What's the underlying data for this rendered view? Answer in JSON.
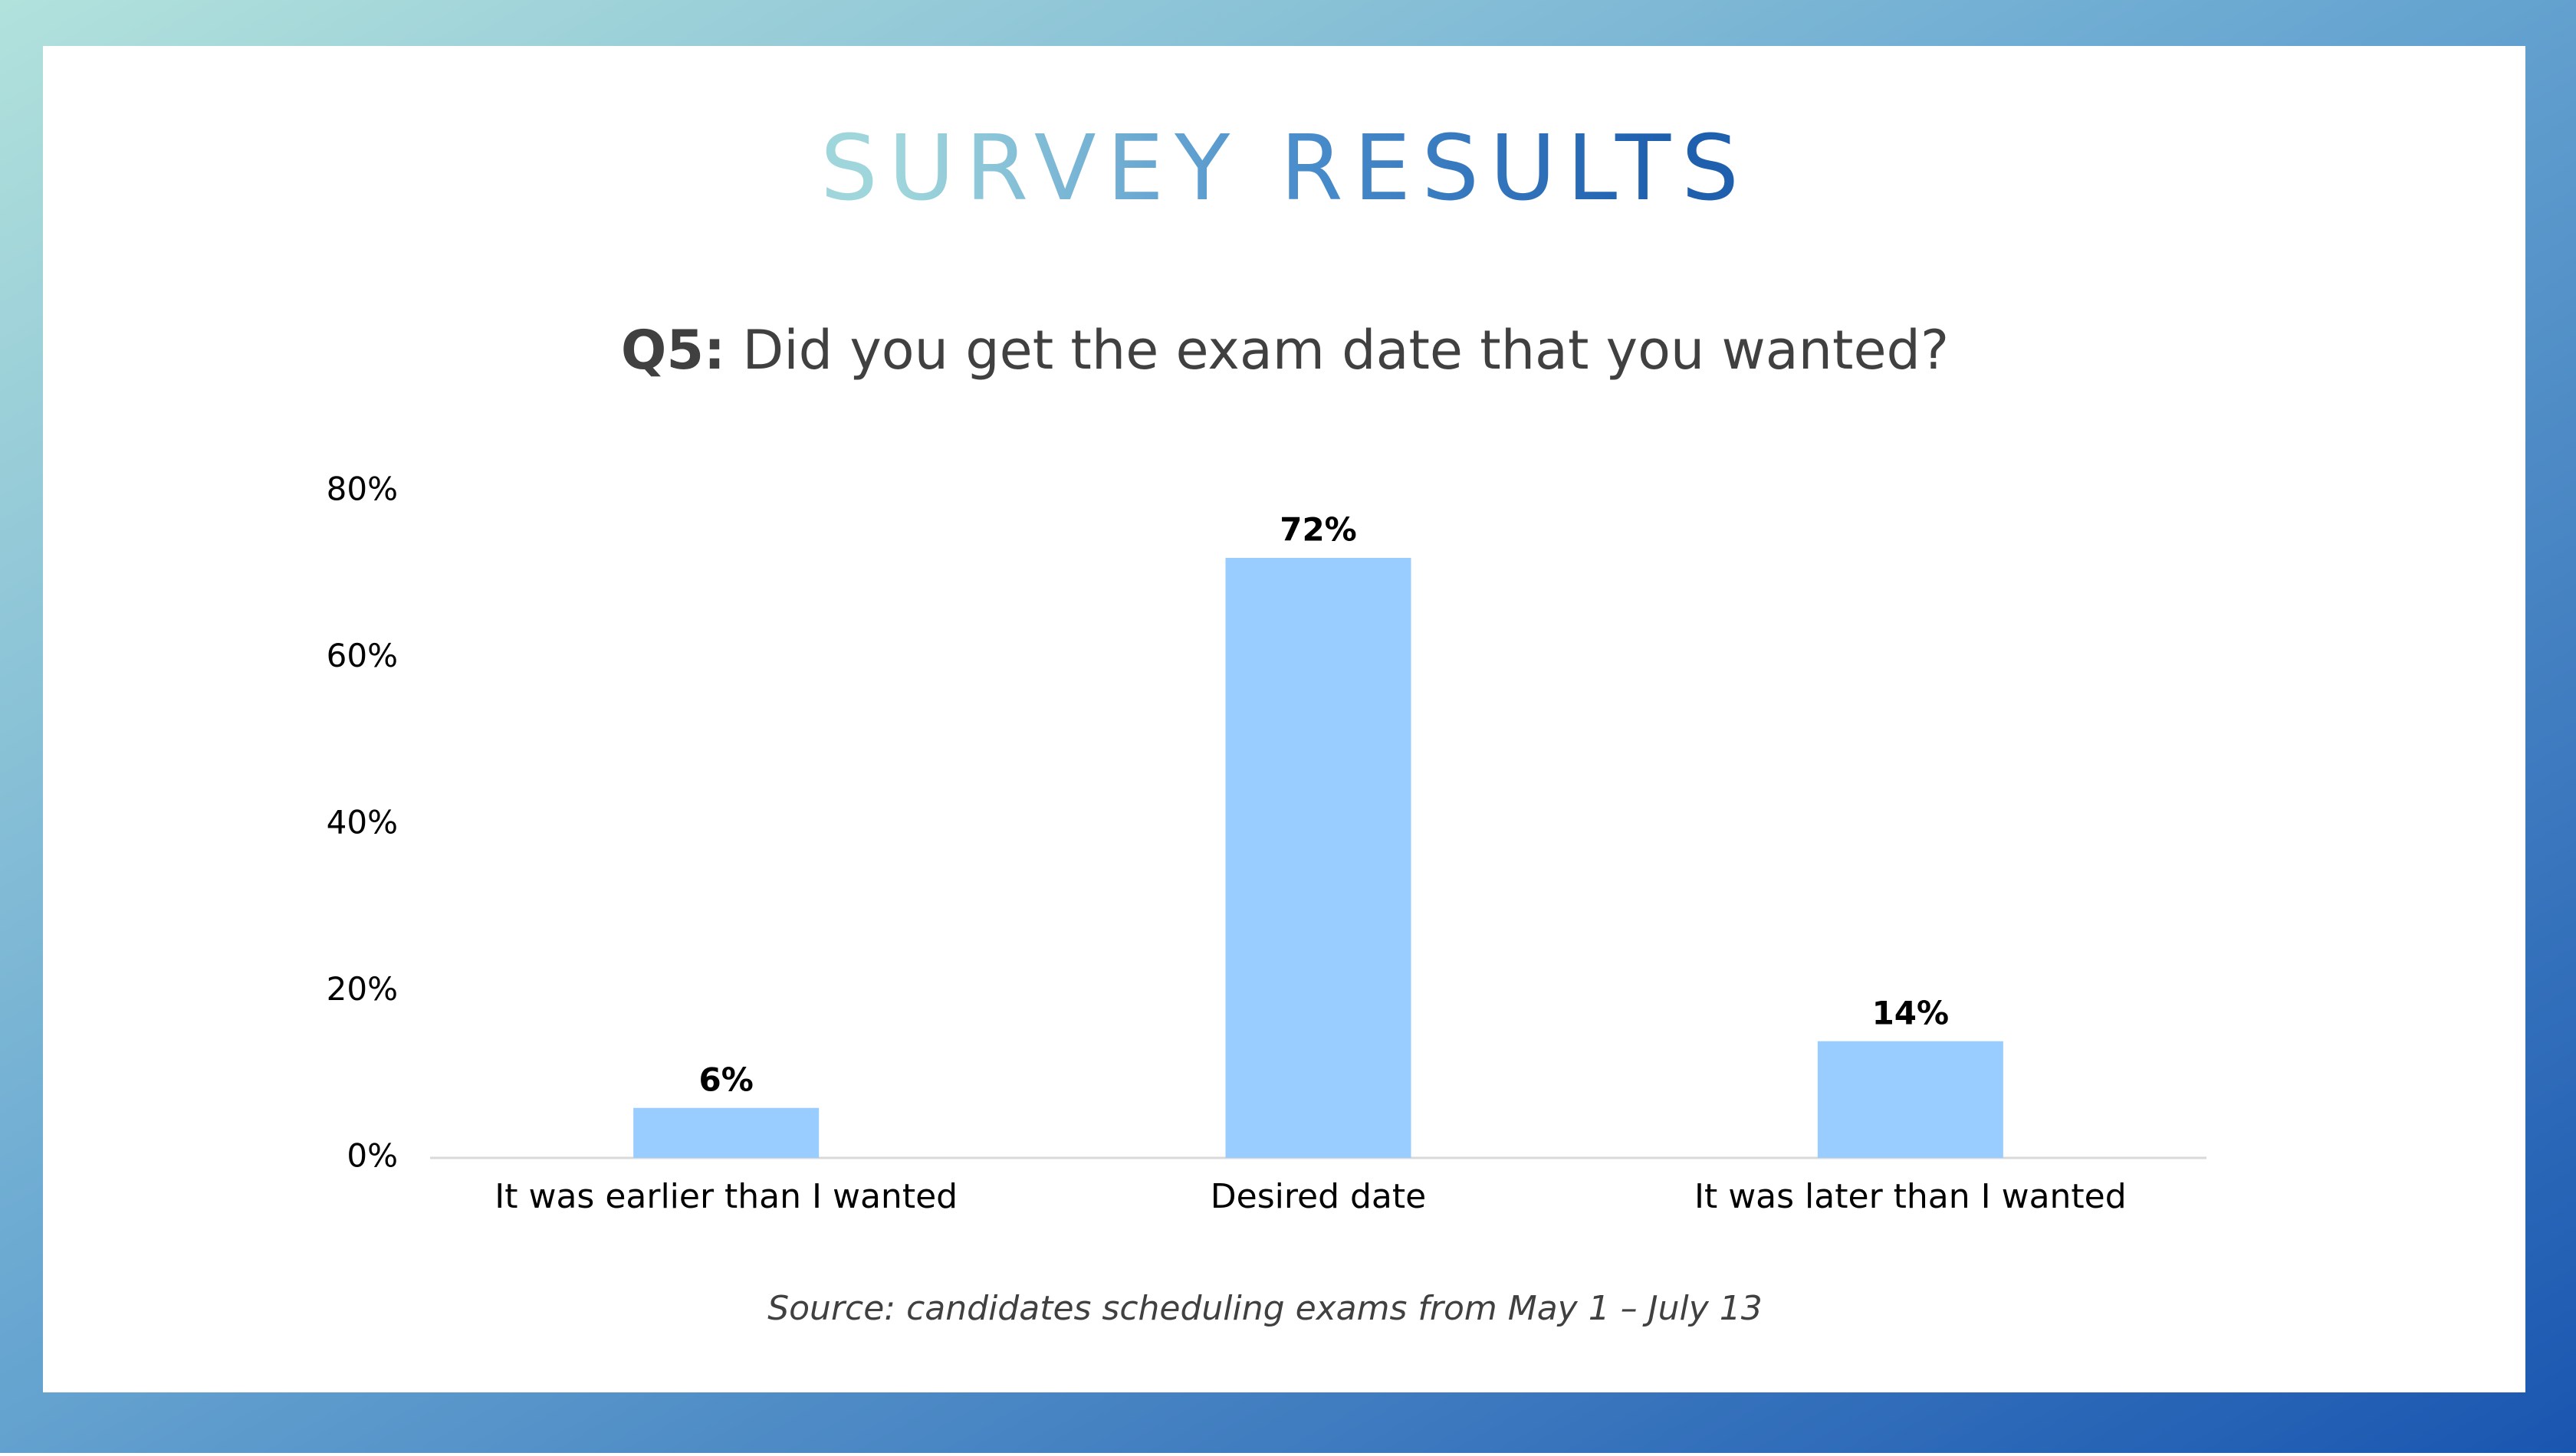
{
  "chart_data": {
    "type": "bar",
    "title": "SURVEY RESULTS",
    "subtitle_label": "Q5:",
    "subtitle": "Did you get the exam date that you wanted?",
    "categories": [
      "It was earlier than I wanted",
      "Desired date",
      "It was later than I wanted"
    ],
    "values": [
      6,
      72,
      14
    ],
    "value_labels": [
      "6%",
      "72%",
      "14%"
    ],
    "color": "#99ccff",
    "ylim": [
      0,
      80
    ],
    "yticks": [
      {
        "value": 0,
        "label": "0%"
      },
      {
        "value": 20,
        "label": "20%"
      },
      {
        "value": 40,
        "label": "40%"
      },
      {
        "value": 60,
        "label": "60%"
      },
      {
        "value": 80,
        "label": "80%"
      }
    ],
    "grid": false,
    "source": "Source: candidates scheduling exams from May 1 – July 13"
  }
}
